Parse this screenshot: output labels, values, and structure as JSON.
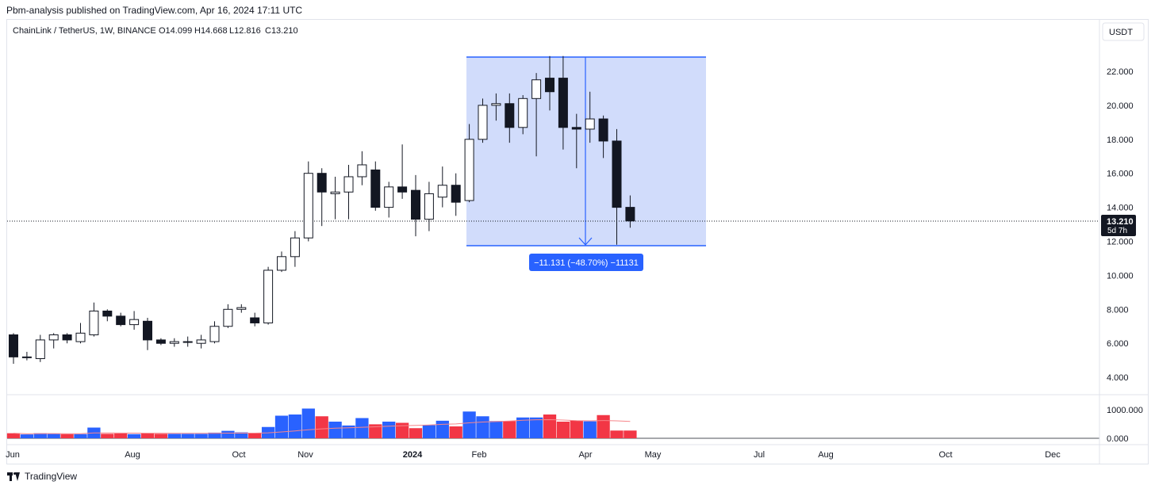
{
  "header": {
    "published": "Pbm-analysis published on TradingView.com, Apr 16, 2024 17:11 UTC"
  },
  "legend": {
    "symbol": "ChainLink / TetherUS, 1W, BINANCE",
    "open": "O14.099",
    "high": "H14.668",
    "low": "L12.816",
    "close": "C13.210"
  },
  "currency_button": "USDT",
  "price_label": {
    "value": "13.210",
    "countdown": "5d 7h"
  },
  "measure_label": "−11.131 (−48.70%) −11131",
  "footer": {
    "brand": "TradingView"
  },
  "colors": {
    "up_volume": "#2962ff",
    "down_volume": "#f23645",
    "measure_fill": "#d1dcfb",
    "measure_line": "#2962ff",
    "ma_line": "#f7858a",
    "candle": "#131722"
  },
  "chart_data": {
    "type": "candlestick",
    "title": "ChainLink / TetherUS, 1W, BINANCE",
    "price_axis": {
      "ticks": [
        4,
        6,
        8,
        10,
        12,
        14,
        16,
        18,
        20,
        22
      ],
      "tick_labels": [
        "4.000",
        "6.000",
        "8.000",
        "10.000",
        "12.000",
        "14.000",
        "16.000",
        "18.000",
        "20.000",
        "22.000"
      ]
    },
    "time_axis": {
      "labels": [
        "Jun",
        "Aug",
        "Oct",
        "Nov",
        "2024",
        "Feb",
        "Apr",
        "May",
        "Jul",
        "Aug",
        "Oct",
        "Dec"
      ],
      "bold": [
        "2024"
      ]
    },
    "candles": [
      {
        "o": 6.5,
        "h": 6.6,
        "l": 4.8,
        "c": 5.2
      },
      {
        "o": 5.2,
        "h": 5.5,
        "l": 5.0,
        "c": 5.2
      },
      {
        "o": 5.1,
        "h": 6.5,
        "l": 4.9,
        "c": 6.2
      },
      {
        "o": 6.2,
        "h": 6.6,
        "l": 5.7,
        "c": 6.5
      },
      {
        "o": 6.5,
        "h": 6.6,
        "l": 6.0,
        "c": 6.2
      },
      {
        "o": 6.1,
        "h": 7.2,
        "l": 6.0,
        "c": 6.6
      },
      {
        "o": 6.5,
        "h": 8.4,
        "l": 6.4,
        "c": 7.9
      },
      {
        "o": 7.9,
        "h": 8.0,
        "l": 7.3,
        "c": 7.6
      },
      {
        "o": 7.6,
        "h": 7.8,
        "l": 7.0,
        "c": 7.1
      },
      {
        "o": 7.1,
        "h": 7.9,
        "l": 6.8,
        "c": 7.4
      },
      {
        "o": 7.3,
        "h": 7.5,
        "l": 5.6,
        "c": 6.2
      },
      {
        "o": 6.2,
        "h": 6.3,
        "l": 5.9,
        "c": 6.0
      },
      {
        "o": 6.0,
        "h": 6.3,
        "l": 5.8,
        "c": 6.1
      },
      {
        "o": 6.1,
        "h": 6.4,
        "l": 5.8,
        "c": 6.1
      },
      {
        "o": 6.0,
        "h": 6.5,
        "l": 5.7,
        "c": 6.2
      },
      {
        "o": 6.1,
        "h": 7.3,
        "l": 6.0,
        "c": 7.0
      },
      {
        "o": 7.0,
        "h": 8.3,
        "l": 6.9,
        "c": 8.0
      },
      {
        "o": 8.0,
        "h": 8.3,
        "l": 7.8,
        "c": 8.1
      },
      {
        "o": 7.5,
        "h": 7.8,
        "l": 7.0,
        "c": 7.2
      },
      {
        "o": 7.2,
        "h": 10.5,
        "l": 7.1,
        "c": 10.3
      },
      {
        "o": 10.3,
        "h": 11.4,
        "l": 10.2,
        "c": 11.1
      },
      {
        "o": 11.1,
        "h": 12.6,
        "l": 10.5,
        "c": 12.2
      },
      {
        "o": 12.2,
        "h": 16.7,
        "l": 12.0,
        "c": 16.0
      },
      {
        "o": 16.0,
        "h": 16.3,
        "l": 12.9,
        "c": 14.9
      },
      {
        "o": 14.8,
        "h": 15.8,
        "l": 13.3,
        "c": 14.9
      },
      {
        "o": 14.9,
        "h": 16.5,
        "l": 13.3,
        "c": 15.8
      },
      {
        "o": 15.8,
        "h": 17.3,
        "l": 15.3,
        "c": 16.5
      },
      {
        "o": 16.2,
        "h": 16.7,
        "l": 13.8,
        "c": 14.0
      },
      {
        "o": 14.0,
        "h": 15.5,
        "l": 13.4,
        "c": 15.2
      },
      {
        "o": 15.2,
        "h": 17.7,
        "l": 14.5,
        "c": 14.9
      },
      {
        "o": 15.0,
        "h": 15.9,
        "l": 12.3,
        "c": 13.3
      },
      {
        "o": 13.3,
        "h": 15.5,
        "l": 12.6,
        "c": 14.8
      },
      {
        "o": 14.6,
        "h": 16.4,
        "l": 14.0,
        "c": 15.3
      },
      {
        "o": 15.3,
        "h": 16.0,
        "l": 13.5,
        "c": 14.3
      },
      {
        "o": 14.4,
        "h": 18.9,
        "l": 14.3,
        "c": 18.0
      },
      {
        "o": 18.0,
        "h": 20.4,
        "l": 17.8,
        "c": 20.0
      },
      {
        "o": 20.0,
        "h": 20.7,
        "l": 19.1,
        "c": 20.1
      },
      {
        "o": 20.1,
        "h": 20.7,
        "l": 17.8,
        "c": 18.7
      },
      {
        "o": 18.7,
        "h": 20.6,
        "l": 18.3,
        "c": 20.4
      },
      {
        "o": 20.4,
        "h": 21.9,
        "l": 17.0,
        "c": 21.5
      },
      {
        "o": 21.6,
        "h": 22.9,
        "l": 19.7,
        "c": 20.8
      },
      {
        "o": 21.6,
        "h": 22.9,
        "l": 17.4,
        "c": 18.7
      },
      {
        "o": 18.7,
        "h": 19.5,
        "l": 16.3,
        "c": 18.6
      },
      {
        "o": 18.6,
        "h": 20.8,
        "l": 17.8,
        "c": 19.2
      },
      {
        "o": 19.2,
        "h": 19.4,
        "l": 16.9,
        "c": 17.9
      },
      {
        "o": 17.9,
        "h": 18.6,
        "l": 11.8,
        "c": 14.0
      },
      {
        "o": 14.0,
        "h": 14.7,
        "l": 12.8,
        "c": 13.2
      }
    ],
    "volume": {
      "axis_labels": [
        "1000.000",
        "0.000"
      ],
      "values": [
        170,
        130,
        170,
        160,
        140,
        140,
        360,
        150,
        160,
        140,
        170,
        150,
        150,
        150,
        150,
        190,
        250,
        200,
        180,
        380,
        760,
        800,
        1000,
        740,
        560,
        430,
        680,
        470,
        560,
        520,
        340,
        440,
        590,
        400,
        900,
        740,
        580,
        580,
        700,
        700,
        800,
        560,
        590,
        570,
        780,
        260,
        260
      ]
    },
    "measure": {
      "from": 22.94,
      "to": 11.81,
      "change": -11.131,
      "percent": -48.7
    },
    "current_price": 13.21
  }
}
